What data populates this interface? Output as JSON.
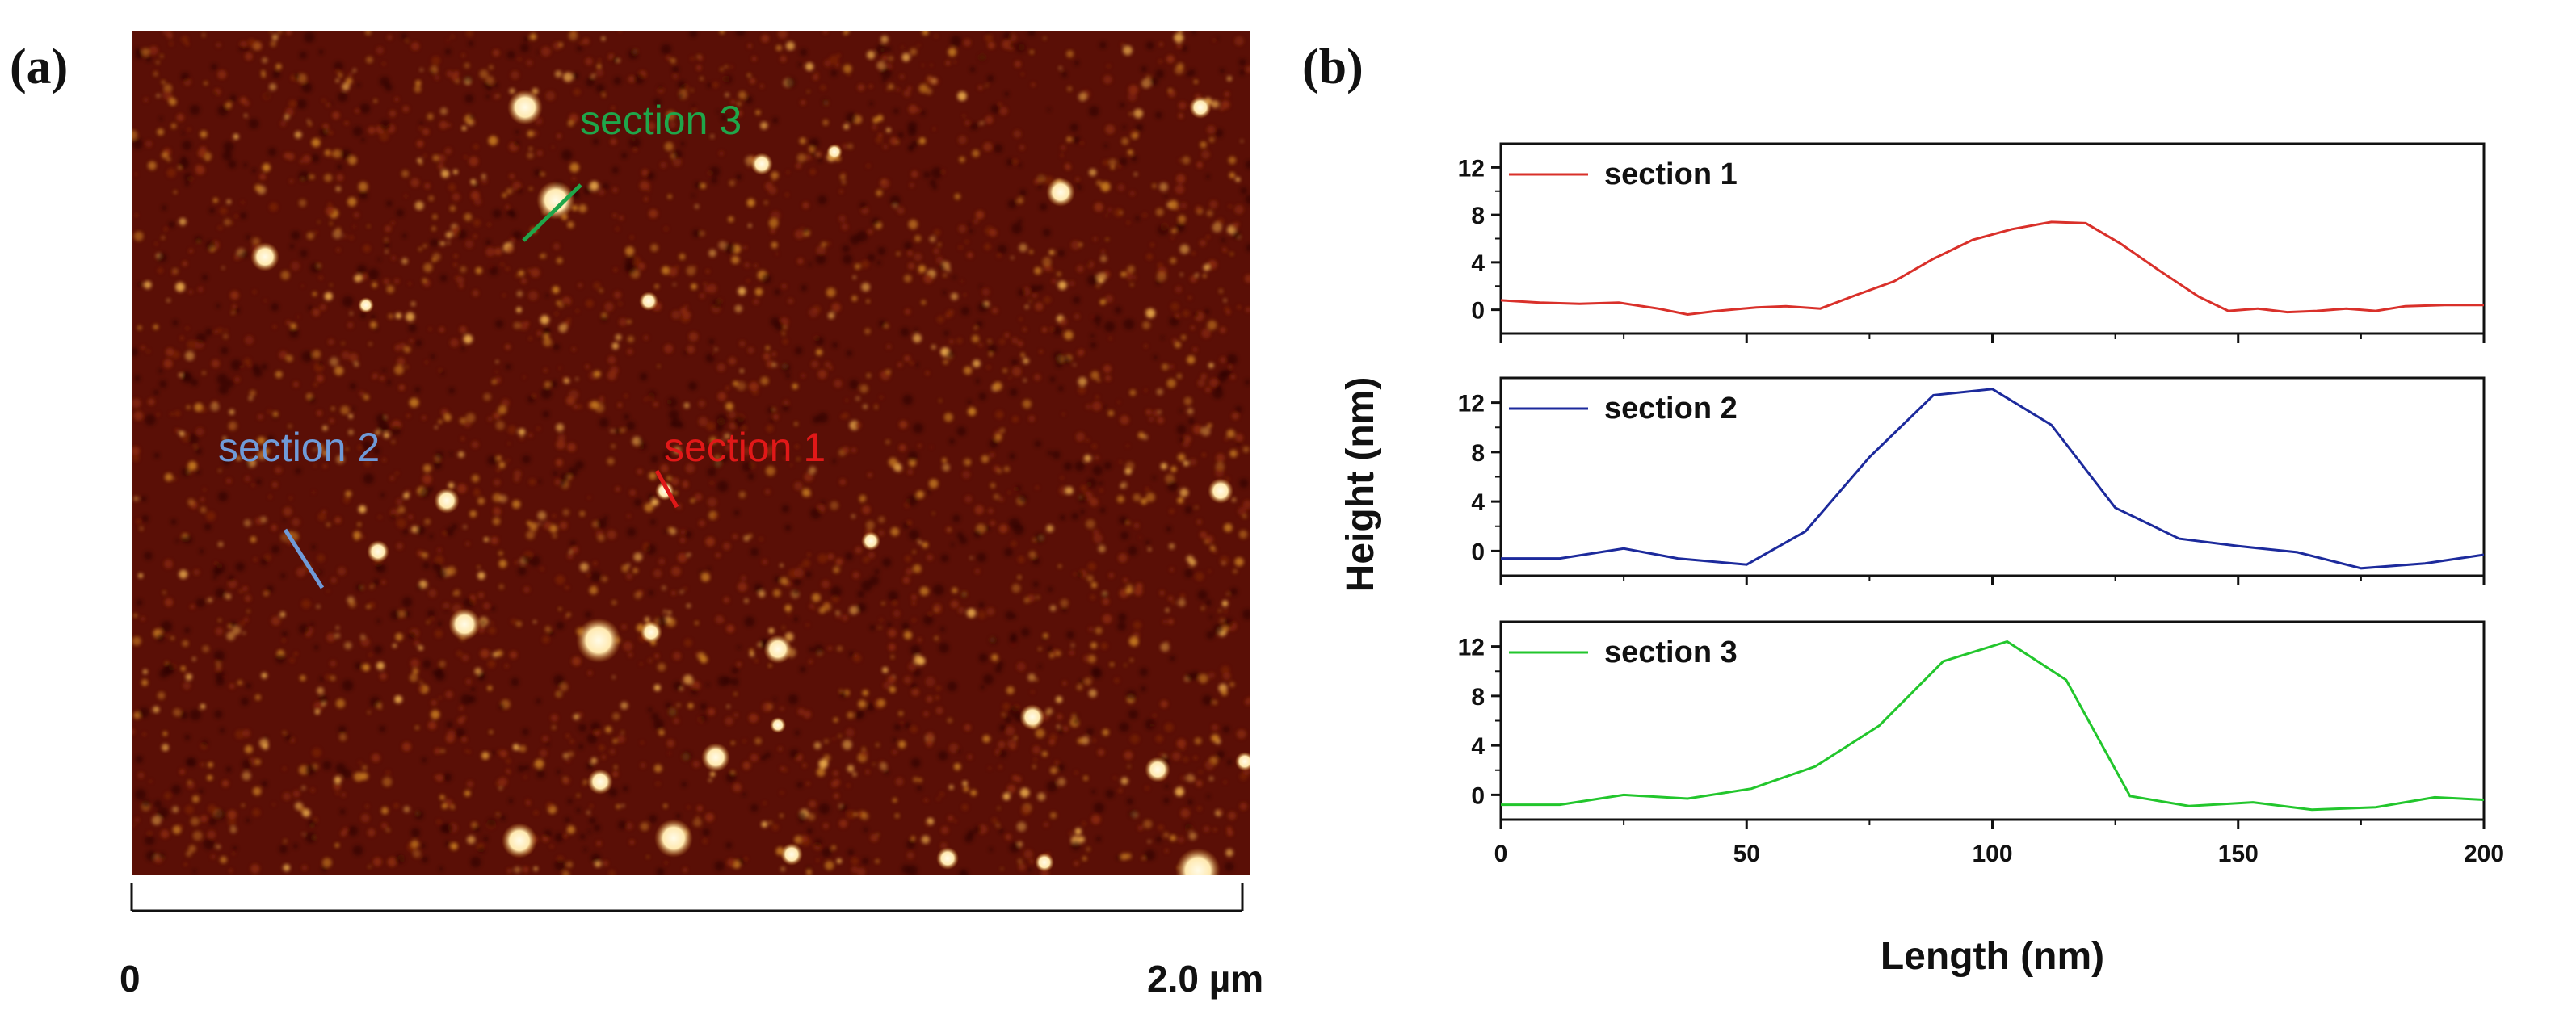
{
  "panel_a": {
    "label": "(a)",
    "scale_start": "0",
    "scale_end": "2.0 µm",
    "section_labels": [
      {
        "text": "section 1",
        "color": "#e01818"
      },
      {
        "text": "section 2",
        "color": "#6f9ad8"
      },
      {
        "text": "section 3",
        "color": "#1fa64a"
      }
    ],
    "colors": {
      "background": "#5a0f06",
      "grain": "#c4781e",
      "particle": "#fff5dc"
    }
  },
  "panel_b": {
    "label": "(b)"
  },
  "chart_data": {
    "type": "line",
    "xlabel": "Length (nm)",
    "ylabel": "Height (nm)",
    "xlim": [
      0,
      200
    ],
    "ylim": [
      -2,
      14
    ],
    "xticks": [
      0,
      50,
      100,
      150,
      200
    ],
    "yticks": [
      0,
      4,
      8,
      12
    ],
    "legend_placement": "top-left",
    "series": [
      {
        "name": "section 1",
        "color": "#d9302a",
        "x": [
          0,
          8,
          16,
          24,
          32,
          38,
          44,
          52,
          58,
          65,
          72,
          80,
          88,
          96,
          104,
          112,
          119,
          126,
          134,
          142,
          148,
          154,
          160,
          166,
          172,
          178,
          184,
          192,
          200
        ],
        "y": [
          0.8,
          0.6,
          0.5,
          0.6,
          0.1,
          -0.4,
          -0.1,
          0.2,
          0.3,
          0.1,
          1.2,
          2.4,
          4.3,
          5.9,
          6.8,
          7.4,
          7.3,
          5.6,
          3.3,
          1.1,
          -0.1,
          0.1,
          -0.2,
          -0.1,
          0.1,
          -0.1,
          0.3,
          0.4,
          0.4
        ]
      },
      {
        "name": "section 2",
        "color": "#1c2a9c",
        "x": [
          0,
          12,
          25,
          36,
          50,
          62,
          75,
          88,
          100,
          112,
          125,
          138,
          150,
          162,
          175,
          188,
          200
        ],
        "y": [
          -0.6,
          -0.6,
          0.2,
          -0.6,
          -1.1,
          1.6,
          7.6,
          12.6,
          13.1,
          10.2,
          3.5,
          1.0,
          0.4,
          -0.1,
          -1.4,
          -1.0,
          -0.3
        ]
      },
      {
        "name": "section 3",
        "color": "#22c62c",
        "x": [
          0,
          12,
          25,
          38,
          51,
          64,
          77,
          90,
          103,
          115,
          128,
          140,
          153,
          165,
          178,
          190,
          200
        ],
        "y": [
          -0.8,
          -0.8,
          0.0,
          -0.3,
          0.5,
          2.3,
          5.6,
          10.8,
          12.4,
          9.3,
          -0.1,
          -0.9,
          -0.6,
          -1.2,
          -1.0,
          -0.2,
          -0.4
        ]
      }
    ]
  }
}
